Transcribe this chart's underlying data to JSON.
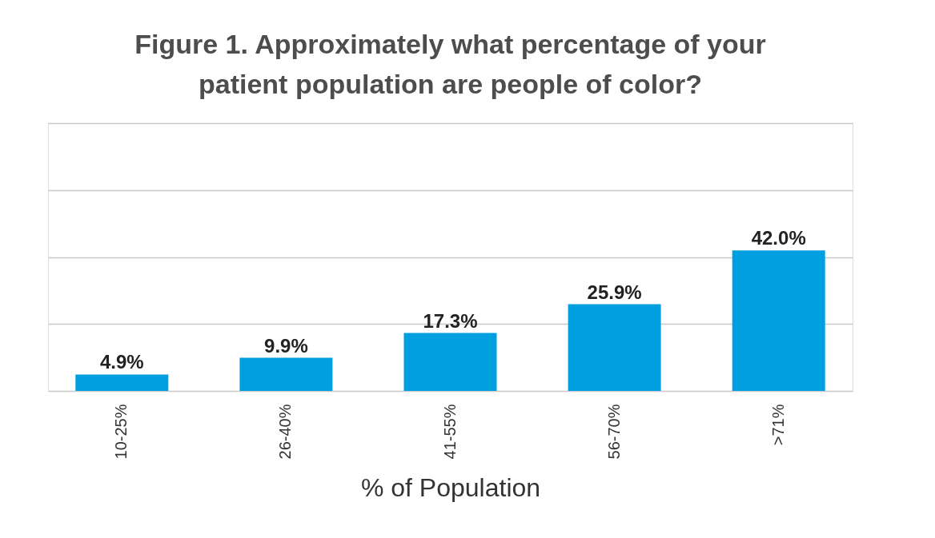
{
  "chart_data": {
    "type": "bar",
    "title": "Figure 1. Approximately what percentage of your patient population are people of color?",
    "xlabel": "% of Population",
    "categories": [
      "10-25%",
      "26-40%",
      "41-55%",
      "56-70%",
      ">71%"
    ],
    "values": [
      4.9,
      9.9,
      17.3,
      25.9,
      42.0
    ],
    "color": "#009fdf",
    "value_labels": [
      "4.9%",
      "9.9%",
      "17.3%",
      "25.9%",
      "42.0%"
    ],
    "ylim": [
      0,
      80
    ],
    "yticks": [
      {
        "value": 0,
        "label": null
      },
      {
        "value": 20,
        "label": null
      },
      {
        "value": 40,
        "label": null
      },
      {
        "value": 60,
        "label": null
      },
      {
        "value": 80,
        "label": null
      }
    ],
    "grid": "y",
    "tick_labels": "x"
  }
}
